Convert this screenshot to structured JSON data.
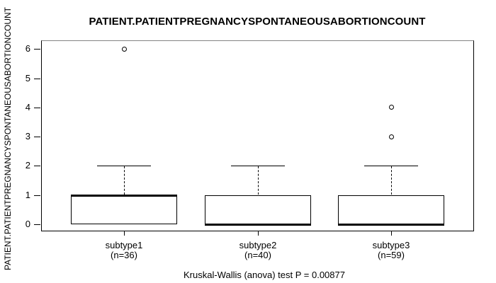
{
  "chart_data": {
    "type": "boxplot",
    "title": "PATIENT.PATIENTPREGNANCYSPONTANEOUSABORTIONCOUNT",
    "ylabel": "PATIENT.PATIENTPREGNANCYSPONTANEOUSABORTIONCOUNT",
    "xlabel": "",
    "footnote": "Kruskal-Wallis (anova) test P = 0.00877",
    "ylim": [
      0,
      6
    ],
    "yticks": [
      0,
      1,
      2,
      3,
      4,
      5,
      6
    ],
    "grid": false,
    "legend": null,
    "colors": {
      "background": "#ffffff",
      "box_fill": "#ffffff",
      "line": "#000000"
    },
    "groups": [
      {
        "label": "subtype1",
        "sublabel": "(n=36)",
        "n": 36,
        "q1": 0,
        "median": 1,
        "q3": 1,
        "whisker_low": 0,
        "whisker_high": 2,
        "outliers": [
          6
        ]
      },
      {
        "label": "subtype2",
        "sublabel": "(n=40)",
        "n": 40,
        "q1": 0,
        "median": 0,
        "q3": 1,
        "whisker_low": 0,
        "whisker_high": 2,
        "outliers": []
      },
      {
        "label": "subtype3",
        "sublabel": "(n=59)",
        "n": 59,
        "q1": 0,
        "median": 0,
        "q3": 1,
        "whisker_low": 0,
        "whisker_high": 2,
        "outliers": [
          4,
          3
        ]
      }
    ],
    "kruskal_wallis_p": 0.00877
  }
}
